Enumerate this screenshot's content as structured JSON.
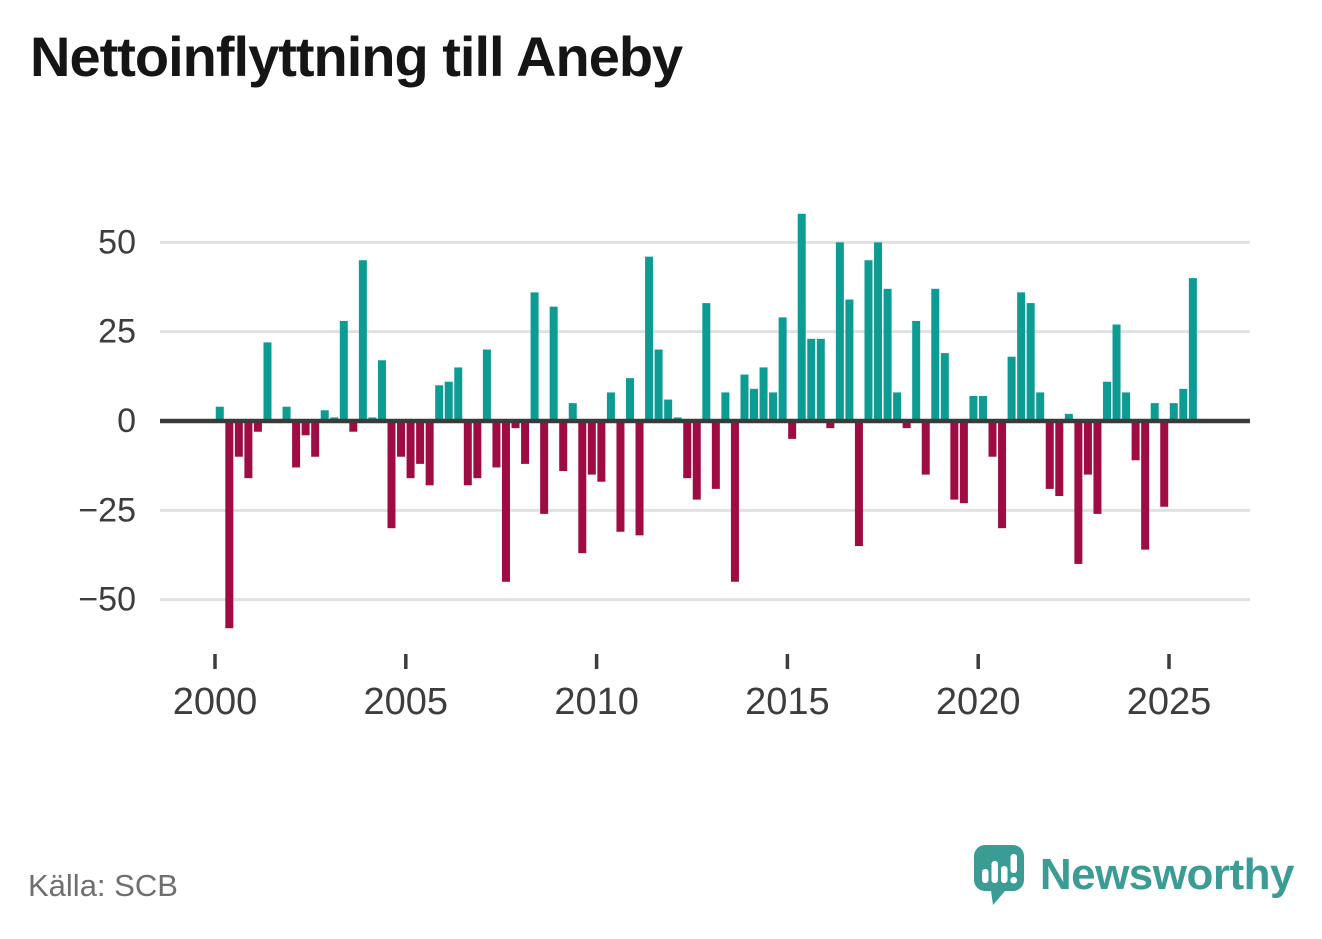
{
  "title": "Nettoinflyttning till Aneby",
  "source": "Källa: SCB",
  "branding": {
    "name": "Newsworthy",
    "icon": "speech-bubble-bar-chart-icon"
  },
  "colors": {
    "positive": "#0d9c93",
    "negative": "#9f0c44",
    "zero_axis": "#3a3a3a",
    "grid": "#e1e1e1",
    "tick_label": "#3d3d3d",
    "title": "#151515",
    "source": "#6f6f6f",
    "brand": "#3b9c95"
  },
  "chart_data": {
    "type": "bar",
    "title": "Nettoinflyttning till Aneby",
    "frequency": "quarterly",
    "start_year": 2000,
    "start_quarter": 1,
    "x_tick_years": [
      2000,
      2005,
      2010,
      2015,
      2020,
      2025
    ],
    "y_ticks": [
      50,
      25,
      0,
      -25,
      -50
    ],
    "ylim": [
      -62,
      62
    ],
    "grid": true,
    "legend": "none",
    "values": [
      4,
      -58,
      -10,
      -16,
      -3,
      22,
      0,
      4,
      -13,
      -4,
      -10,
      3,
      1,
      28,
      -3,
      45,
      1,
      17,
      -30,
      -10,
      -16,
      -12,
      -18,
      10,
      11,
      15,
      -18,
      -16,
      20,
      -13,
      -45,
      -2,
      -12,
      36,
      -26,
      32,
      -14,
      5,
      -37,
      -15,
      -17,
      8,
      -31,
      12,
      -32,
      46,
      20,
      6,
      1,
      -16,
      -22,
      33,
      -19,
      8,
      -45,
      13,
      9,
      15,
      8,
      29,
      -5,
      58,
      23,
      23,
      -2,
      50,
      34,
      -35,
      45,
      50,
      37,
      8,
      -2,
      28,
      -15,
      37,
      19,
      -22,
      -23,
      7,
      7,
      -10,
      -30,
      18,
      36,
      33,
      8,
      -19,
      -21,
      2,
      -40,
      -15,
      -26,
      11,
      27,
      8,
      -11,
      -36,
      5,
      -24,
      5,
      9,
      40
    ]
  }
}
